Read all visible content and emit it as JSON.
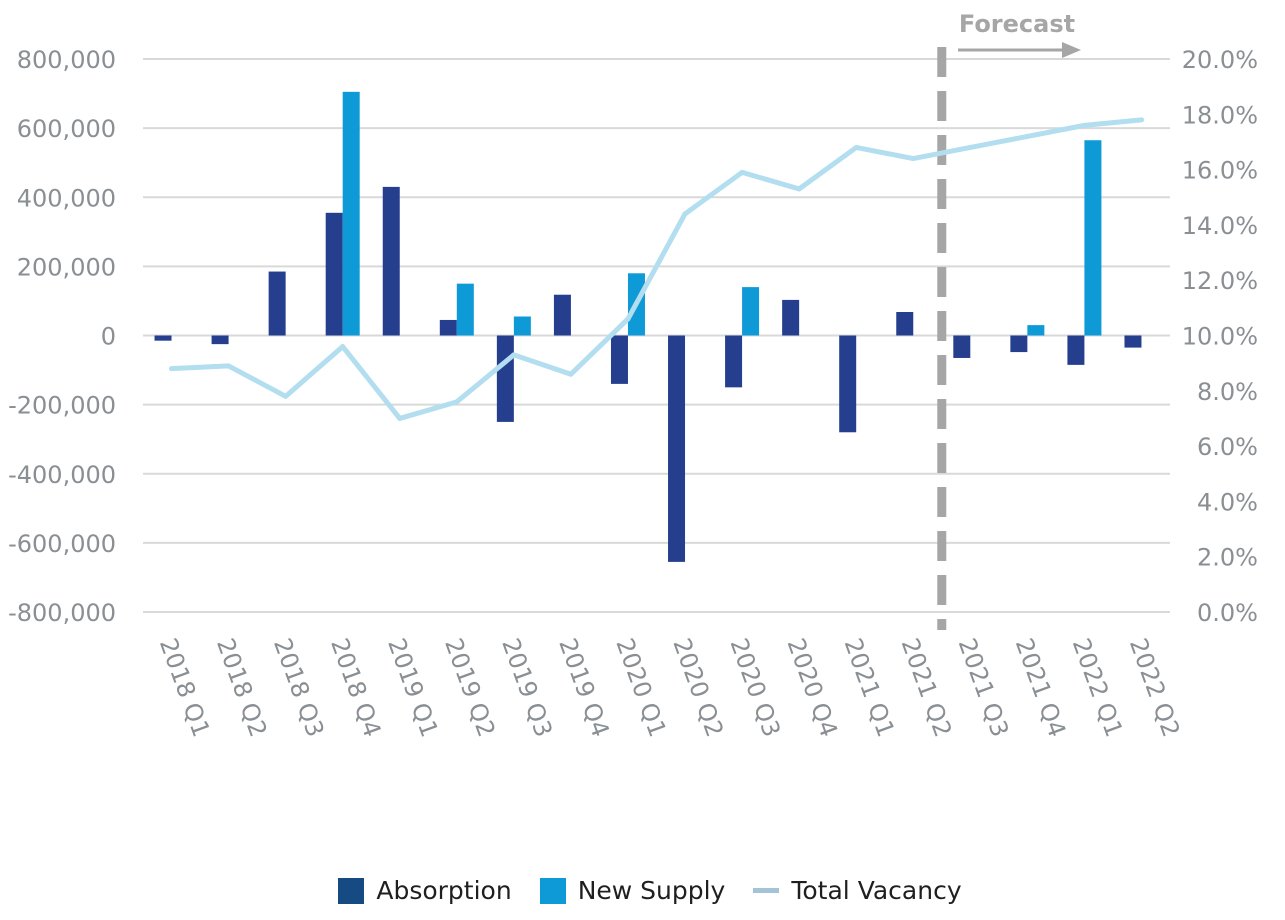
{
  "chart_data": {
    "type": "bar+line",
    "title": "",
    "categories": [
      "2018 Q1",
      "2018 Q2",
      "2018 Q3",
      "2018 Q4",
      "2019 Q1",
      "2019 Q2",
      "2019 Q3",
      "2019 Q4",
      "2020 Q1",
      "2020 Q2",
      "2020 Q3",
      "2020 Q4",
      "2021 Q1",
      "2021 Q2",
      "2021 Q3",
      "2021 Q4",
      "2022 Q1",
      "2022 Q2"
    ],
    "series": [
      {
        "name": "Absorption",
        "type": "bar",
        "axis": "left",
        "values": [
          -15000,
          -25000,
          185000,
          355000,
          430000,
          45000,
          -250000,
          118000,
          -140000,
          -655000,
          -150000,
          103000,
          -280000,
          68000,
          -65000,
          -48000,
          -85000,
          -35000
        ]
      },
      {
        "name": "New Supply",
        "type": "bar",
        "axis": "left",
        "values": [
          0,
          0,
          0,
          705000,
          0,
          150000,
          55000,
          0,
          180000,
          0,
          140000,
          0,
          0,
          0,
          0,
          30000,
          565000,
          0
        ]
      },
      {
        "name": "Total Vacancy",
        "type": "line",
        "axis": "right",
        "values": [
          8.8,
          8.9,
          7.8,
          9.6,
          7.0,
          7.6,
          9.3,
          8.6,
          10.6,
          14.4,
          15.9,
          15.3,
          16.8,
          16.4,
          16.8,
          17.2,
          17.6,
          17.8
        ]
      }
    ],
    "y_left": {
      "min": -800000,
      "max": 800000,
      "step": 200000,
      "tick_labels": [
        "-800,000",
        "-600,000",
        "-400,000",
        "-200,000",
        "0",
        "200,000",
        "400,000",
        "600,000",
        "800,000"
      ]
    },
    "y_right": {
      "min": 0,
      "max": 20,
      "step": 2,
      "tick_labels": [
        "0.0%",
        "2.0%",
        "4.0%",
        "6.0%",
        "8.0%",
        "10.0%",
        "12.0%",
        "14.0%",
        "16.0%",
        "18.0%",
        "20.0%"
      ]
    },
    "forecast": {
      "label": "Forecast",
      "divider_between": [
        "2021 Q2",
        "2021 Q3"
      ]
    },
    "grid": true,
    "legend_position": "bottom"
  },
  "colors": {
    "absorption_bar": "#253f8e",
    "absorption_legend": "#154a82",
    "new_supply": "#0e9ad6",
    "vacancy_line": "#b2def0",
    "vacancy_legend": "#a5c3d6",
    "grid": "#d9d9d9",
    "divider": "#a6a6a6"
  },
  "legend": {
    "absorption": "Absorption",
    "new_supply": "New Supply",
    "total_vacancy": "Total Vacancy"
  }
}
